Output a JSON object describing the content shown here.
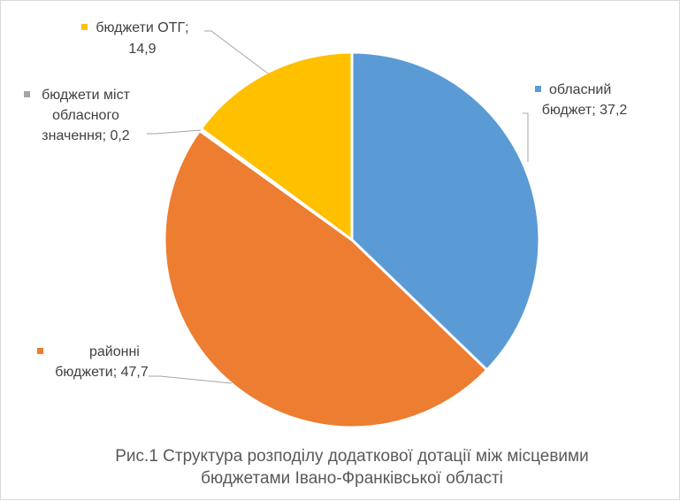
{
  "chart_data": {
    "type": "pie",
    "title": "Рис.1 Структура розподілу додаткової дотації між місцевими бюджетами Івано-Франківської області",
    "title_lines": [
      "Рис.1 Структура розподілу додаткової дотації між місцевими",
      "бюджетами Івано-Франківської області"
    ],
    "start_angle_deg": 0,
    "direction": "clockwise",
    "legend": "none",
    "slices": [
      {
        "name": "обласний бюджет",
        "value": 37.2,
        "value_label": "37,2",
        "color": "#5B9BD5",
        "label_lines": [
          "обласний",
          "бюджет; 37,2"
        ]
      },
      {
        "name": "районні бюджети",
        "value": 47.7,
        "value_label": "47,7",
        "color": "#ED7D31",
        "label_lines": [
          "районні",
          "бюджети; 47,7"
        ]
      },
      {
        "name": "бюджети міст обласного значення",
        "value": 0.2,
        "value_label": "0,2",
        "color": "#A5A5A5",
        "label_lines": [
          "бюджети міст",
          "обласного",
          "значення; 0,2"
        ]
      },
      {
        "name": "бюджети ОТГ",
        "value": 14.9,
        "value_label": "14,9",
        "color": "#FFC000",
        "label_lines": [
          "бюджети ОТГ;",
          "14,9"
        ]
      }
    ]
  }
}
